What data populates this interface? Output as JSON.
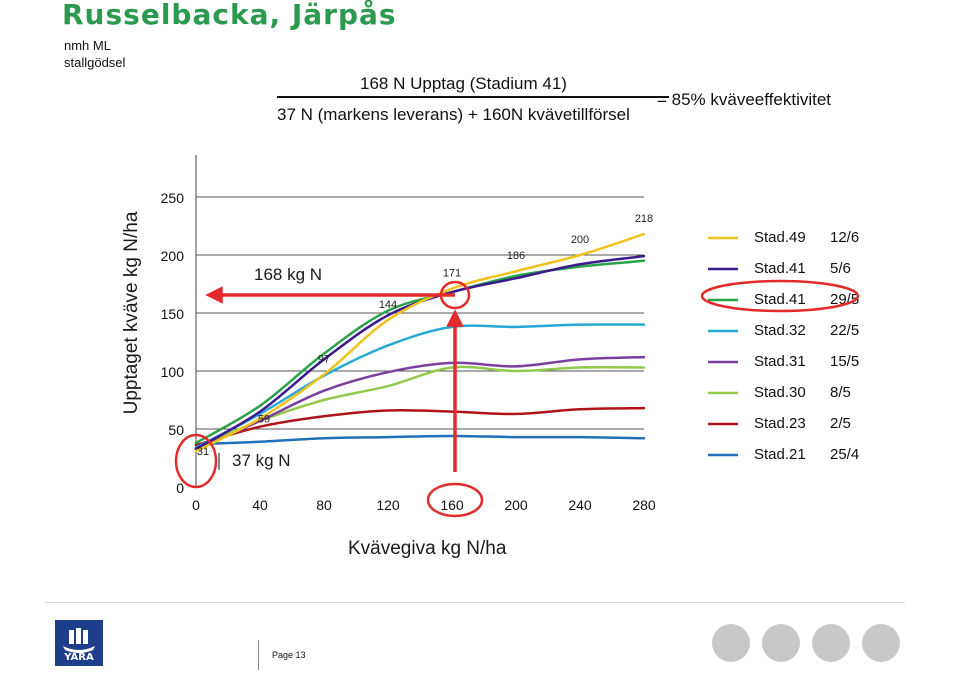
{
  "header": {
    "title": "Russelbacka, Järpås",
    "subtitle_line1": "nmh ML",
    "subtitle_line2": "stallgödsel"
  },
  "formula": {
    "numerator": "168 N Upptag (Stadium 41)",
    "denominator": "37 N (markens leverans) + 160N kvävetillförsel",
    "result": "= 85% kväveeffektivitet"
  },
  "annotations": {
    "uptake_label": "168 kg N",
    "soil_label": "37 kg N"
  },
  "footer": {
    "page": "Page 13",
    "logo_text": "YARA"
  },
  "chart_data": {
    "type": "line",
    "xlabel": "Kvävegiva kg N/ha",
    "ylabel": "Upptaget kväve kg N/ha",
    "xlim": [
      0,
      280
    ],
    "ylim": [
      0,
      250
    ],
    "x_ticks": [
      0,
      40,
      80,
      120,
      160,
      200,
      240,
      280
    ],
    "y_ticks": [
      0,
      50,
      100,
      150,
      200,
      250
    ],
    "x": [
      0,
      40,
      80,
      120,
      160,
      200,
      240,
      280
    ],
    "grid": "horizontal",
    "legend_position": "right",
    "series": [
      {
        "name": "Stad.49",
        "date": "12/6",
        "color": "#f2c21b",
        "values": [
          31,
          59,
          97,
          144,
          171,
          186,
          200,
          218
        ]
      },
      {
        "name": "Stad.41",
        "date": "5/6",
        "color": "#3b1a8c",
        "values": [
          33,
          65,
          110,
          148,
          168,
          180,
          192,
          199
        ]
      },
      {
        "name": "Stad.41",
        "date": "29/5",
        "color": "#2aa24a",
        "values": [
          38,
          70,
          115,
          152,
          168,
          182,
          190,
          195
        ]
      },
      {
        "name": "Stad.32",
        "date": "22/5",
        "color": "#26a8d6",
        "values": [
          34,
          63,
          96,
          122,
          138,
          138,
          140,
          140
        ]
      },
      {
        "name": "Stad.31",
        "date": "15/5",
        "color": "#7b3fa0",
        "values": [
          32,
          57,
          83,
          99,
          107,
          104,
          110,
          112
        ]
      },
      {
        "name": "Stad.30",
        "date": "8/5",
        "color": "#93c84d",
        "values": [
          34,
          57,
          75,
          87,
          103,
          100,
          103,
          103
        ]
      },
      {
        "name": "Stad.23",
        "date": "2/5",
        "color": "#b0141a",
        "values": [
          36,
          52,
          61,
          66,
          65,
          63,
          67,
          68
        ]
      },
      {
        "name": "Stad.21",
        "date": "25/4",
        "color": "#2470b8",
        "values": [
          37,
          39,
          42,
          43,
          44,
          43,
          43,
          42
        ]
      }
    ],
    "data_labels": [
      {
        "x": 0,
        "y": 31,
        "text": "31"
      },
      {
        "x": 40,
        "y": 59,
        "text": "59"
      },
      {
        "x": 80,
        "y": 97,
        "text": "97"
      },
      {
        "x": 120,
        "y": 144,
        "text": "144"
      },
      {
        "x": 160,
        "y": 171,
        "text": "171"
      },
      {
        "x": 200,
        "y": 186,
        "text": "186"
      },
      {
        "x": 240,
        "y": 200,
        "text": "200"
      },
      {
        "x": 280,
        "y": 218,
        "text": "218"
      }
    ]
  }
}
